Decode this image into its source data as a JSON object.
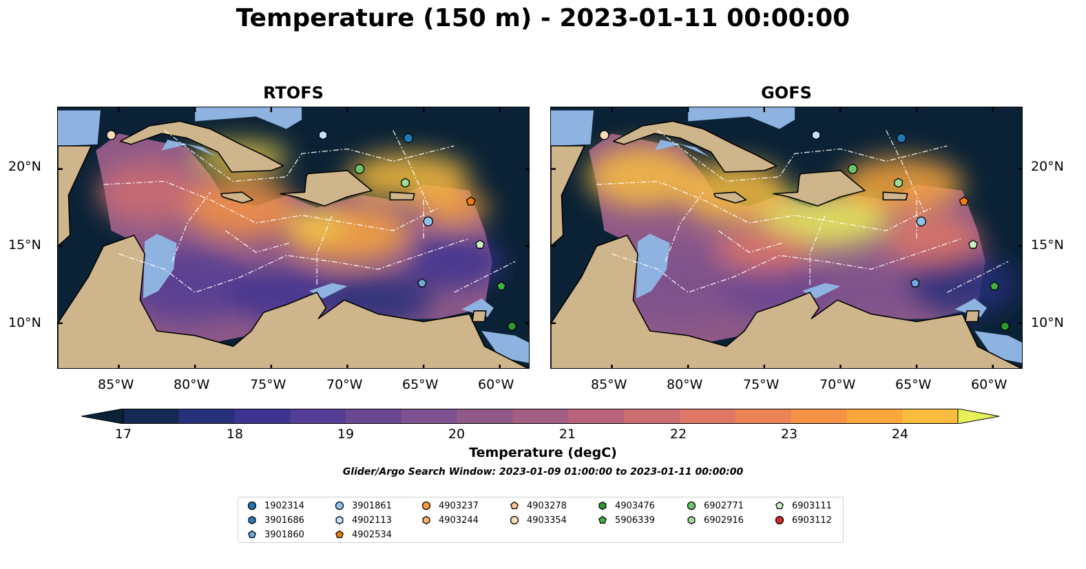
{
  "figure": {
    "title": "Temperature (150 m) - 2023-01-11 00:00:00",
    "window_note": "Glider/Argo Search Window: 2023-01-09 01:00:00 to 2023-01-11 00:00:00"
  },
  "panels": [
    {
      "title": "RTOFS"
    },
    {
      "title": "GOFS"
    }
  ],
  "axes": {
    "x_ticks": [
      "85°W",
      "80°W",
      "75°W",
      "70°W",
      "65°W",
      "60°W"
    ],
    "y_ticks": [
      "20°N",
      "15°N",
      "10°N"
    ],
    "lon_range": [
      -89,
      -58
    ],
    "lat_range": [
      7,
      24
    ]
  },
  "colorbar": {
    "label": "Temperature (degC)",
    "ticks": [
      "17",
      "18",
      "19",
      "20",
      "21",
      "22",
      "23",
      "24"
    ],
    "range": [
      17,
      24.5
    ],
    "step": 0.5,
    "extend": "both",
    "colors": [
      "#0b2236",
      "#142a52",
      "#27307a",
      "#3d3390",
      "#543d94",
      "#6a4791",
      "#7d518d",
      "#8f5a88",
      "#a35e83",
      "#b8647c",
      "#cc6d72",
      "#de7766",
      "#ec8355",
      "#f59346",
      "#f9a63d",
      "#f9bd3f",
      "#f2d348",
      "#e7ef5a"
    ]
  },
  "map_colors": {
    "land": "#cfb58b",
    "shelf": "#8fb3e0",
    "deep_water": "#0b2236",
    "coastline": "#000000",
    "eez_lines": "#ffffff"
  },
  "legend": {
    "items": [
      {
        "label": "1902314",
        "marker": "circle",
        "color": "#1f77b4"
      },
      {
        "label": "3901686",
        "marker": "hexagon",
        "color": "#2c7bc0"
      },
      {
        "label": "3901860",
        "marker": "pentagon",
        "color": "#6fa8dc"
      },
      {
        "label": "3901861",
        "marker": "circle",
        "color": "#8ec4ec"
      },
      {
        "label": "4902113",
        "marker": "hexagon",
        "color": "#c6e2fb"
      },
      {
        "label": "4902534",
        "marker": "pentagon",
        "color": "#f07c12"
      },
      {
        "label": "4903237",
        "marker": "circle",
        "color": "#fd9a3c"
      },
      {
        "label": "4903244",
        "marker": "hexagon",
        "color": "#fdb06a"
      },
      {
        "label": "4903278",
        "marker": "pentagon",
        "color": "#fdc68e"
      },
      {
        "label": "4903354",
        "marker": "circle",
        "color": "#fddcb8"
      },
      {
        "label": "4903476",
        "marker": "hexagon",
        "color": "#2c9c2c"
      },
      {
        "label": "5906339",
        "marker": "pentagon",
        "color": "#41b043"
      },
      {
        "label": "6902771",
        "marker": "circle",
        "color": "#6cc46a"
      },
      {
        "label": "6902916",
        "marker": "hexagon",
        "color": "#a1dd98"
      },
      {
        "label": "6903111",
        "marker": "pentagon",
        "color": "#cdf0c6"
      },
      {
        "label": "6903112",
        "marker": "circle",
        "color": "#d62728"
      }
    ]
  },
  "floats": [
    {
      "id": "4903354",
      "lon": -85.5,
      "lat": 22.2
    },
    {
      "id": "4902113",
      "lon": -71.6,
      "lat": 22.2
    },
    {
      "id": "1902314",
      "lon": -66.0,
      "lat": 22.0
    },
    {
      "id": "6902771",
      "lon": -69.2,
      "lat": 20.0
    },
    {
      "id": "6902916",
      "lon": -66.2,
      "lat": 19.1
    },
    {
      "id": "4902534",
      "lon": -61.9,
      "lat": 17.9
    },
    {
      "id": "3901861",
      "lon": -64.7,
      "lat": 16.6
    },
    {
      "id": "6903111",
      "lon": -61.3,
      "lat": 15.1
    },
    {
      "id": "3901860",
      "lon": -65.1,
      "lat": 12.6
    },
    {
      "id": "5906339",
      "lon": -59.9,
      "lat": 12.4
    },
    {
      "id": "4903476",
      "lon": -59.2,
      "lat": 9.8
    }
  ]
}
